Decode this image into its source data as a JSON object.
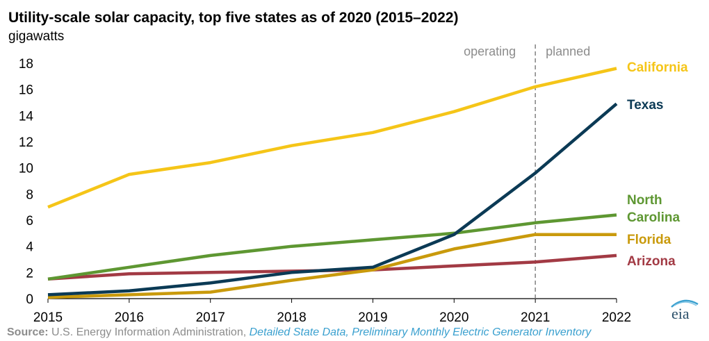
{
  "title": "Utility-scale solar capacity, top five states as of 2020 (2015–2022)",
  "units": "gigawatts",
  "source": {
    "prefix": "Source:",
    "text": "U.S. Energy Information Administration,",
    "link": "Detailed State Data, Preliminary Monthly Electric Generator Inventory"
  },
  "logo_text": "eia",
  "chart_data": {
    "type": "line",
    "x": [
      2015,
      2016,
      2017,
      2018,
      2019,
      2020,
      2021,
      2022
    ],
    "ylim": [
      0,
      18
    ],
    "yticks": [
      0,
      2,
      4,
      6,
      8,
      10,
      12,
      14,
      16,
      18
    ],
    "ytick_labels": [
      "0",
      "2",
      "4",
      "6",
      "8",
      "10",
      "12",
      "14",
      "16",
      "18"
    ],
    "xtick_labels": [
      "2015",
      "2016",
      "2017",
      "2018",
      "2019",
      "2020",
      "2021",
      "2022"
    ],
    "region_divider_x": 2021,
    "region_labels": [
      "operating",
      "planned"
    ],
    "grid": false,
    "legend": "inline-right",
    "series": [
      {
        "name": "California",
        "color": "#f5c518",
        "values": [
          7.0,
          9.5,
          10.4,
          11.7,
          12.7,
          14.3,
          16.2,
          17.6
        ]
      },
      {
        "name": "Texas",
        "color": "#0b3a55",
        "values": [
          0.3,
          0.6,
          1.2,
          2.0,
          2.4,
          4.9,
          9.6,
          14.9
        ]
      },
      {
        "name": "North Carolina",
        "color": "#5e9732",
        "values": [
          1.5,
          2.4,
          3.3,
          4.0,
          4.5,
          5.0,
          5.8,
          6.4
        ]
      },
      {
        "name": "Florida",
        "color": "#c99a0c",
        "values": [
          0.1,
          0.3,
          0.5,
          1.4,
          2.2,
          3.8,
          4.9,
          4.9
        ]
      },
      {
        "name": "Arizona",
        "color": "#a23a44",
        "values": [
          1.5,
          1.9,
          2.0,
          2.1,
          2.2,
          2.5,
          2.8,
          3.3
        ]
      }
    ],
    "series_labels": [
      "California",
      "Texas",
      "North\nCarolina",
      "Florida",
      "Arizona"
    ]
  }
}
